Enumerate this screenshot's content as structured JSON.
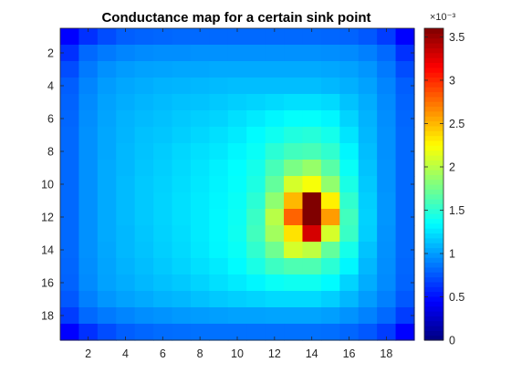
{
  "chart_data": {
    "type": "heatmap",
    "title": "Conductance map for a certain sink point",
    "xlabel": "",
    "ylabel": "",
    "x_ticks": [
      "2",
      "4",
      "6",
      "8",
      "10",
      "12",
      "14",
      "16",
      "18"
    ],
    "y_ticks": [
      "2",
      "4",
      "6",
      "8",
      "10",
      "12",
      "14",
      "16",
      "18"
    ],
    "xlim": [
      0.5,
      19.5
    ],
    "ylim": [
      0.5,
      19.5
    ],
    "y_direction": "reverse",
    "colormap": "jet",
    "colorbar": {
      "range": [
        0,
        3.6
      ],
      "ticks": [
        "0",
        "0.5",
        "1",
        "1.5",
        "2",
        "2.5",
        "3",
        "3.5"
      ],
      "exponent_label": "×10⁻³"
    },
    "unit_scale": 0.001,
    "values": [
      [
        0.45,
        0.62,
        0.72,
        0.78,
        0.8,
        0.81,
        0.82,
        0.82,
        0.82,
        0.82,
        0.82,
        0.82,
        0.82,
        0.82,
        0.81,
        0.8,
        0.76,
        0.66,
        0.45
      ],
      [
        0.62,
        0.82,
        0.88,
        0.92,
        0.94,
        0.95,
        0.95,
        0.96,
        0.96,
        0.96,
        0.96,
        0.96,
        0.96,
        0.96,
        0.95,
        0.94,
        0.9,
        0.82,
        0.62
      ],
      [
        0.72,
        0.88,
        0.96,
        1.0,
        1.02,
        1.03,
        1.04,
        1.04,
        1.05,
        1.05,
        1.05,
        1.05,
        1.05,
        1.05,
        1.04,
        1.02,
        0.98,
        0.88,
        0.72
      ],
      [
        0.78,
        0.92,
        1.0,
        1.04,
        1.06,
        1.08,
        1.09,
        1.1,
        1.11,
        1.12,
        1.12,
        1.12,
        1.12,
        1.12,
        1.1,
        1.07,
        1.02,
        0.92,
        0.78
      ],
      [
        0.8,
        0.94,
        1.02,
        1.06,
        1.09,
        1.11,
        1.13,
        1.14,
        1.16,
        1.18,
        1.2,
        1.22,
        1.24,
        1.24,
        1.22,
        1.14,
        1.06,
        0.94,
        0.8
      ],
      [
        0.81,
        0.95,
        1.03,
        1.08,
        1.11,
        1.13,
        1.16,
        1.18,
        1.2,
        1.24,
        1.28,
        1.32,
        1.36,
        1.36,
        1.32,
        1.2,
        1.08,
        0.95,
        0.81
      ],
      [
        0.82,
        0.96,
        1.04,
        1.09,
        1.13,
        1.15,
        1.18,
        1.21,
        1.24,
        1.28,
        1.34,
        1.4,
        1.46,
        1.48,
        1.42,
        1.26,
        1.1,
        0.96,
        0.82
      ],
      [
        0.82,
        0.96,
        1.04,
        1.1,
        1.14,
        1.17,
        1.21,
        1.24,
        1.27,
        1.32,
        1.38,
        1.5,
        1.58,
        1.6,
        1.52,
        1.32,
        1.12,
        0.96,
        0.82
      ],
      [
        0.82,
        0.96,
        1.05,
        1.1,
        1.15,
        1.18,
        1.22,
        1.26,
        1.3,
        1.35,
        1.42,
        1.6,
        1.78,
        1.88,
        1.66,
        1.38,
        1.14,
        0.97,
        0.82
      ],
      [
        0.82,
        0.96,
        1.05,
        1.11,
        1.16,
        1.19,
        1.23,
        1.27,
        1.31,
        1.36,
        1.45,
        1.7,
        2.1,
        2.22,
        1.86,
        1.44,
        1.16,
        0.97,
        0.82
      ],
      [
        0.82,
        0.96,
        1.05,
        1.11,
        1.16,
        1.2,
        1.24,
        1.28,
        1.32,
        1.38,
        1.5,
        1.85,
        2.5,
        3.6,
        2.3,
        1.52,
        1.18,
        0.98,
        0.82
      ],
      [
        0.82,
        0.96,
        1.05,
        1.11,
        1.16,
        1.2,
        1.24,
        1.28,
        1.33,
        1.39,
        1.55,
        2.0,
        2.8,
        3.6,
        2.6,
        1.58,
        1.19,
        0.98,
        0.82
      ],
      [
        0.82,
        0.96,
        1.05,
        1.1,
        1.15,
        1.19,
        1.23,
        1.28,
        1.33,
        1.4,
        1.58,
        1.92,
        2.35,
        3.3,
        2.1,
        1.55,
        1.18,
        0.97,
        0.82
      ],
      [
        0.82,
        0.96,
        1.04,
        1.1,
        1.14,
        1.18,
        1.22,
        1.27,
        1.32,
        1.38,
        1.52,
        1.74,
        2.1,
        2.02,
        1.7,
        1.42,
        1.14,
        0.96,
        0.82
      ],
      [
        0.81,
        0.95,
        1.03,
        1.08,
        1.12,
        1.16,
        1.2,
        1.24,
        1.28,
        1.34,
        1.44,
        1.56,
        1.62,
        1.62,
        1.5,
        1.32,
        1.1,
        0.95,
        0.81
      ],
      [
        0.8,
        0.94,
        1.02,
        1.06,
        1.1,
        1.13,
        1.16,
        1.2,
        1.24,
        1.28,
        1.32,
        1.38,
        1.4,
        1.4,
        1.34,
        1.2,
        1.06,
        0.94,
        0.8
      ],
      [
        0.76,
        0.9,
        0.98,
        1.02,
        1.05,
        1.08,
        1.1,
        1.13,
        1.16,
        1.18,
        1.2,
        1.22,
        1.22,
        1.22,
        1.18,
        1.1,
        1.0,
        0.9,
        0.76
      ],
      [
        0.66,
        0.82,
        0.88,
        0.92,
        0.95,
        0.97,
        0.99,
        1.0,
        1.01,
        1.02,
        1.02,
        1.03,
        1.03,
        1.03,
        1.01,
        0.97,
        0.91,
        0.82,
        0.66
      ],
      [
        0.45,
        0.62,
        0.72,
        0.78,
        0.81,
        0.83,
        0.84,
        0.85,
        0.85,
        0.85,
        0.85,
        0.85,
        0.85,
        0.85,
        0.84,
        0.81,
        0.76,
        0.66,
        0.45
      ]
    ]
  }
}
